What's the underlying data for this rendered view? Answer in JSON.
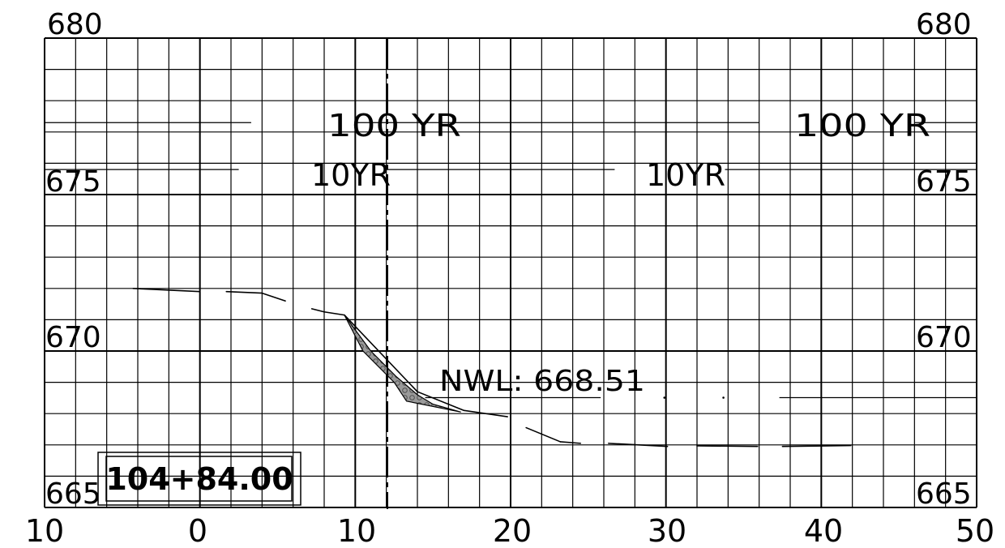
{
  "section": {
    "station": "104+84.00",
    "elevation_labels": [
      "680",
      "675",
      "670",
      "665"
    ],
    "offset_labels": [
      "10",
      "0",
      "10",
      "20",
      "30",
      "40",
      "50"
    ],
    "water_levels": {
      "hundred_year": "100 YR",
      "ten_year": "10YR",
      "normal": "NWL: 668.51"
    }
  },
  "chart_data": {
    "type": "line",
    "title": "",
    "xlabel": "",
    "ylabel": "",
    "xlim": [
      -10,
      50
    ],
    "ylim": [
      665,
      680
    ],
    "x_ticks": [
      -10,
      0,
      10,
      20,
      30,
      40,
      50
    ],
    "x_tick_labels": [
      "10",
      "0",
      "10",
      "20",
      "30",
      "40",
      "50"
    ],
    "y_ticks": [
      680,
      675,
      670,
      665
    ],
    "grid": true,
    "centerline_offset": 12,
    "reference_lines": [
      {
        "label": "100 YR",
        "elevation": 677.3
      },
      {
        "label": "10YR",
        "elevation": 675.8
      },
      {
        "label": "NWL: 668.51",
        "elevation": 668.51
      }
    ],
    "ground_profile": [
      [
        -4.3,
        672.0
      ],
      [
        0,
        671.9
      ],
      [
        1.7,
        671.9
      ],
      [
        4.0,
        671.85
      ],
      [
        5.5,
        671.6
      ],
      [
        7.2,
        671.35
      ],
      [
        8.0,
        671.25
      ],
      [
        9.3,
        671.15
      ],
      [
        14.0,
        668.7
      ],
      [
        17.0,
        668.1
      ],
      [
        19.8,
        667.9
      ],
      [
        21.0,
        667.55
      ],
      [
        23.2,
        667.1
      ],
      [
        24.5,
        667.05
      ],
      [
        26.3,
        667.05
      ],
      [
        30.1,
        666.95
      ],
      [
        32.0,
        666.97
      ],
      [
        35.9,
        666.95
      ],
      [
        37.5,
        666.95
      ],
      [
        41.9,
        666.98
      ]
    ],
    "riprap_polygon": [
      [
        9.3,
        671.15
      ],
      [
        11.0,
        670.0
      ],
      [
        12.6,
        669.2
      ],
      [
        14.0,
        668.6
      ],
      [
        15.0,
        668.3
      ],
      [
        16.8,
        668.05
      ],
      [
        13.3,
        668.4
      ],
      [
        12.5,
        669.0
      ],
      [
        10.5,
        670.0
      ]
    ]
  }
}
